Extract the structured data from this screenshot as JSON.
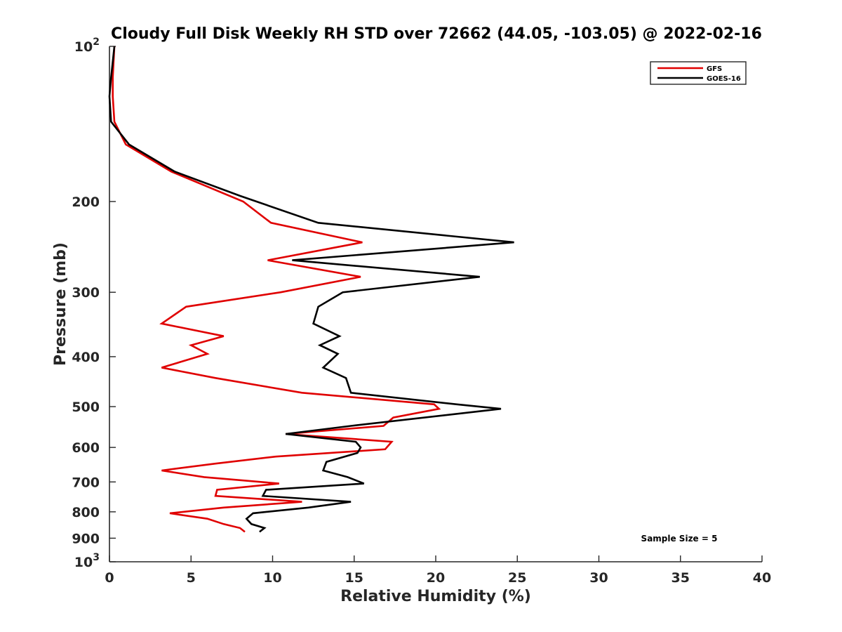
{
  "chart_data": {
    "type": "line",
    "title": "Cloudy Full Disk Weekly RH STD over 72662 (44.05, -103.05) @ 2022-02-16",
    "xlabel": "Relative Humidity (%)",
    "ylabel": "Pressure (mb)",
    "xlim": [
      0,
      40
    ],
    "ylim": [
      100,
      1000
    ],
    "y_scale": "log",
    "y_reversed": true,
    "grid": false,
    "legend_position": "top-right",
    "x_ticks": [
      "0",
      "5",
      "10",
      "15",
      "20",
      "25",
      "30",
      "35",
      "40"
    ],
    "y_ticks": [
      {
        "value": 100,
        "base": "10",
        "exp": "2"
      },
      {
        "value": 200,
        "label": "200"
      },
      {
        "value": 300,
        "label": "300"
      },
      {
        "value": 400,
        "label": "400"
      },
      {
        "value": 500,
        "label": "500"
      },
      {
        "value": 600,
        "label": "600"
      },
      {
        "value": 700,
        "label": "700"
      },
      {
        "value": 800,
        "label": "800"
      },
      {
        "value": 900,
        "label": "900"
      },
      {
        "value": 1000,
        "base": "10",
        "exp": "3"
      }
    ],
    "annotation": "Sample Size = 5",
    "series": [
      {
        "name": "GFS",
        "color": "#e00000",
        "points": [
          [
            0.3,
            100
          ],
          [
            0.2,
            115
          ],
          [
            0.2,
            125
          ],
          [
            0.3,
            140
          ],
          [
            1.0,
            155
          ],
          [
            3.8,
            175
          ],
          [
            8.2,
            200
          ],
          [
            9.9,
            220
          ],
          [
            15.5,
            240
          ],
          [
            9.7,
            260
          ],
          [
            15.4,
            280
          ],
          [
            10.5,
            300
          ],
          [
            4.7,
            320
          ],
          [
            3.2,
            345
          ],
          [
            7.0,
            365
          ],
          [
            5.0,
            380
          ],
          [
            6.0,
            395
          ],
          [
            3.2,
            420
          ],
          [
            6.5,
            440
          ],
          [
            11.8,
            470
          ],
          [
            19.9,
            495
          ],
          [
            20.2,
            505
          ],
          [
            17.4,
            525
          ],
          [
            16.8,
            545
          ],
          [
            10.8,
            565
          ],
          [
            17.3,
            585
          ],
          [
            16.9,
            605
          ],
          [
            10.2,
            625
          ],
          [
            6.5,
            645
          ],
          [
            3.2,
            665
          ],
          [
            5.8,
            685
          ],
          [
            10.4,
            705
          ],
          [
            6.6,
            725
          ],
          [
            6.5,
            745
          ],
          [
            11.8,
            765
          ],
          [
            7.0,
            785
          ],
          [
            3.7,
            805
          ],
          [
            6.0,
            825
          ],
          [
            7.0,
            845
          ],
          [
            8.0,
            860
          ],
          [
            8.3,
            875
          ]
        ]
      },
      {
        "name": "GOES-16",
        "color": "#000000",
        "points": [
          [
            0.3,
            100
          ],
          [
            0.1,
            115
          ],
          [
            0.0,
            125
          ],
          [
            0.1,
            140
          ],
          [
            1.2,
            155
          ],
          [
            4.0,
            175
          ],
          [
            8.0,
            195
          ],
          [
            12.8,
            220
          ],
          [
            24.8,
            240
          ],
          [
            11.2,
            260
          ],
          [
            22.7,
            280
          ],
          [
            14.3,
            300
          ],
          [
            12.8,
            320
          ],
          [
            12.5,
            345
          ],
          [
            14.1,
            365
          ],
          [
            12.9,
            380
          ],
          [
            14.0,
            395
          ],
          [
            13.1,
            420
          ],
          [
            14.5,
            440
          ],
          [
            14.8,
            470
          ],
          [
            21.3,
            495
          ],
          [
            24.0,
            505
          ],
          [
            14.8,
            545
          ],
          [
            10.8,
            565
          ],
          [
            15.1,
            585
          ],
          [
            15.4,
            600
          ],
          [
            15.2,
            615
          ],
          [
            13.3,
            640
          ],
          [
            13.1,
            665
          ],
          [
            14.6,
            685
          ],
          [
            15.6,
            705
          ],
          [
            9.6,
            725
          ],
          [
            9.4,
            745
          ],
          [
            14.8,
            765
          ],
          [
            12.2,
            785
          ],
          [
            8.8,
            805
          ],
          [
            8.4,
            825
          ],
          [
            8.7,
            845
          ],
          [
            9.5,
            860
          ],
          [
            9.2,
            875
          ]
        ]
      }
    ]
  }
}
